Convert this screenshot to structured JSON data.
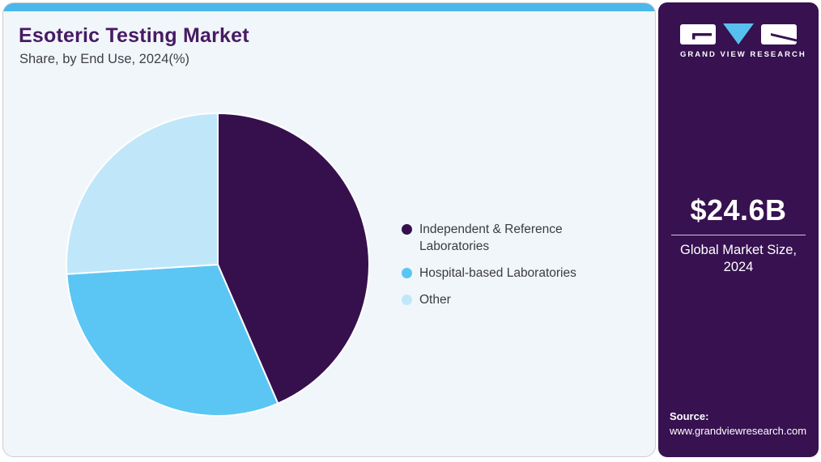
{
  "header": {
    "title": "Esoteric Testing Market",
    "subtitle": "Share, by End Use, 2024(%)"
  },
  "chart_data": {
    "type": "pie",
    "title": "Esoteric Testing Market Share, by End Use, 2024(%)",
    "legend_position": "right",
    "start_angle_deg": 0,
    "direction": "clockwise",
    "values_labeled_on_chart": false,
    "note": "Slice values estimated from arc angles; percentages are not printed in the image",
    "segments": [
      {
        "label": "Independent & Reference Laboratories",
        "value": 43.5,
        "color": "#36104d"
      },
      {
        "label": "Hospital-based Laboratories",
        "value": 30.5,
        "color": "#5bc6f3"
      },
      {
        "label": "Other",
        "value": 26.0,
        "color": "#bfe7f9"
      }
    ]
  },
  "sidebar": {
    "logo_brand": "GRAND VIEW RESEARCH",
    "market_size_value": "$24.6B",
    "market_size_label_line1": "Global Market Size,",
    "market_size_label_line2": "2024",
    "source_label": "Source:",
    "source_url": "www.grandviewresearch.com"
  },
  "colors": {
    "accent_top_bar": "#4bb8e9",
    "card_background": "#f1f6fa",
    "card_border": "#c9ced6",
    "title_text": "#471a63",
    "sidebar_background": "#371150",
    "logo_triangle": "#56c1ee",
    "slice_separator": "#ffffff"
  }
}
